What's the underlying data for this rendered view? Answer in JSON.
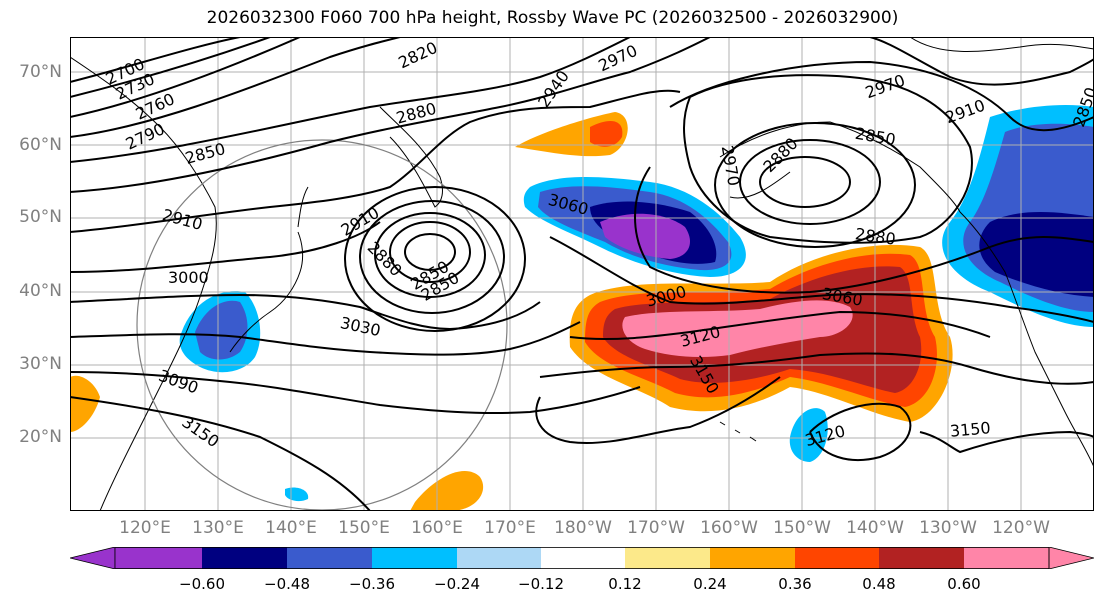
{
  "title": "2026032300 F060 700 hPa height, Rossby Wave PC (2026032500 - 2026032900)",
  "lat_labels": [
    "70°N",
    "60°N",
    "50°N",
    "40°N",
    "30°N",
    "20°N"
  ],
  "lon_labels": [
    "120°E",
    "130°E",
    "140°E",
    "150°E",
    "160°E",
    "170°E",
    "180°W",
    "170°W",
    "160°W",
    "150°W",
    "140°W",
    "130°W",
    "120°W"
  ],
  "contour_labels": [
    "2700",
    "2730",
    "2760",
    "2790",
    "2820",
    "2850",
    "2880",
    "2910",
    "2940",
    "2970",
    "2850",
    "2880",
    "2850",
    "2910",
    "3000",
    "3030",
    "3090",
    "3150",
    "3060",
    "2970",
    "3000",
    "3120",
    "3150",
    "3060",
    "2880",
    "2850",
    "2970",
    "2910",
    "2850",
    "3120",
    "3150",
    "2880"
  ],
  "colorbar": {
    "ticks": [
      "−0.60",
      "−0.48",
      "−0.36",
      "−0.24",
      "−0.12",
      "0.12",
      "0.24",
      "0.36",
      "0.48",
      "0.60"
    ],
    "colors": [
      "#9933cc",
      "#000080",
      "#3a5bcd",
      "#00bfff",
      "#add8f5",
      "#ffffff",
      "#fce98a",
      "#ffa500",
      "#ff4500",
      "#b22222",
      "#ff85a8",
      "#ff85a8"
    ],
    "under_color": "#9933cc",
    "over_color": "#ff85a8"
  },
  "colors": {
    "contour": "#000000",
    "grid": "#b0b0b0",
    "axis_label": "#808080",
    "coast": "#000000",
    "circle": "#808080"
  }
}
